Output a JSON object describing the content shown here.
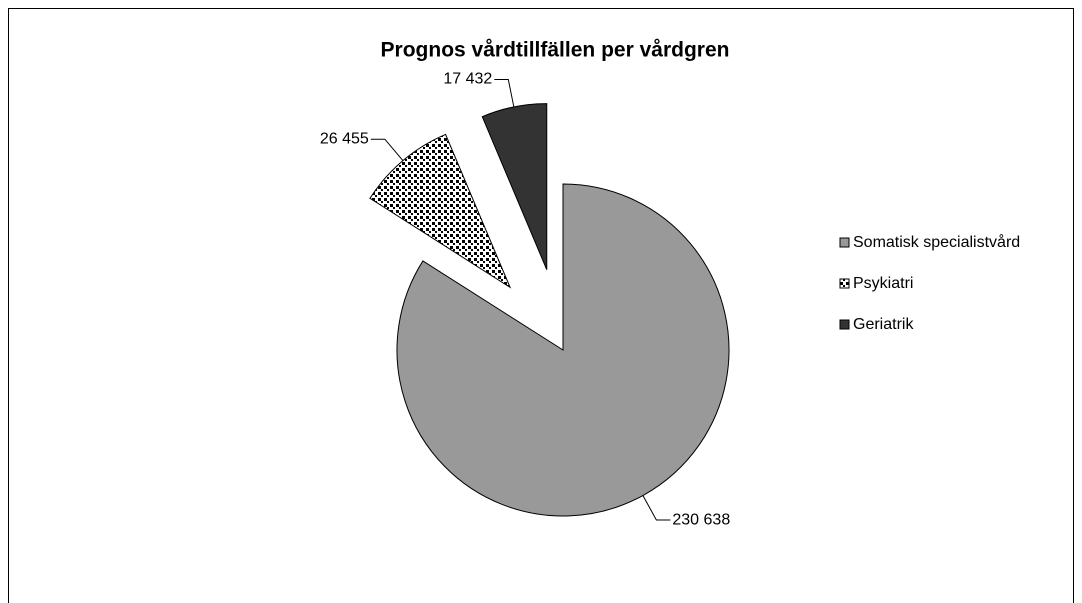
{
  "chart_data": {
    "type": "pie",
    "title": "Prognos vårdtillfällen per vårdgren",
    "categories": [
      "Somatisk specialistvård",
      "Psykiatri",
      "Geriatrik"
    ],
    "values": [
      230638,
      26455,
      17432
    ],
    "value_labels": [
      "230 638",
      "26 455",
      "17 432"
    ],
    "colors": [
      "#999999",
      "#ffffff",
      "#333333"
    ],
    "patterns": [
      "solid",
      "dots",
      "solid"
    ],
    "exploded": [
      false,
      true,
      true
    ],
    "legend": "right"
  }
}
